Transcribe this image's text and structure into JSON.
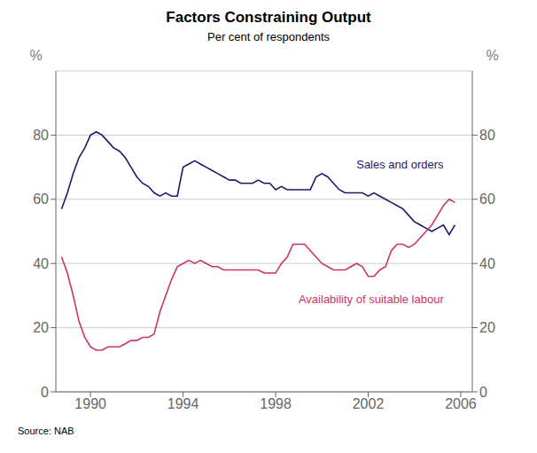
{
  "chart_data": {
    "type": "line",
    "title": "Factors Constraining Output",
    "subtitle": "Per cent of respondents",
    "source": "Source: NAB",
    "ylabel": "%",
    "y2label": "%",
    "grid": true,
    "xlim": [
      1988.5,
      2006.5
    ],
    "xticks": [
      1990,
      1994,
      1998,
      2002,
      2006
    ],
    "ylim": [
      0,
      100
    ],
    "yticks": [
      0,
      20,
      40,
      60,
      80
    ],
    "y2lim": [
      0,
      100
    ],
    "y2ticks": [
      0,
      20,
      40,
      60,
      80
    ],
    "x": [
      1988.75,
      1989.0,
      1989.25,
      1989.5,
      1989.75,
      1990.0,
      1990.25,
      1990.5,
      1990.75,
      1991.0,
      1991.25,
      1991.5,
      1991.75,
      1992.0,
      1992.25,
      1992.5,
      1992.75,
      1993.0,
      1993.25,
      1993.5,
      1993.75,
      1994.0,
      1994.25,
      1994.5,
      1994.75,
      1995.0,
      1995.25,
      1995.5,
      1995.75,
      1996.0,
      1996.25,
      1996.5,
      1996.75,
      1997.0,
      1997.25,
      1997.5,
      1997.75,
      1998.0,
      1998.25,
      1998.5,
      1998.75,
      1999.0,
      1999.25,
      1999.5,
      1999.75,
      2000.0,
      2000.25,
      2000.5,
      2000.75,
      2001.0,
      2001.25,
      2001.5,
      2001.75,
      2002.0,
      2002.25,
      2002.5,
      2002.75,
      2003.0,
      2003.25,
      2003.5,
      2003.75,
      2004.0,
      2004.25,
      2004.5,
      2004.75,
      2005.0,
      2005.25,
      2005.5,
      2005.75
    ],
    "series": [
      {
        "color": "#1a1a6e",
        "values": [
          57,
          62,
          68,
          73,
          76,
          80,
          81,
          80,
          78,
          76,
          75,
          73,
          70,
          67,
          65,
          64,
          62,
          61,
          62,
          61,
          61,
          70,
          71,
          72,
          71,
          70,
          69,
          68,
          67,
          66,
          66,
          65,
          65,
          65,
          66,
          65,
          65,
          63,
          64,
          63,
          63,
          63,
          63,
          63,
          67,
          68,
          67,
          65,
          63,
          62,
          62,
          62,
          62,
          61,
          62,
          61,
          60,
          59,
          58,
          57,
          55,
          53,
          52,
          51,
          50,
          51,
          52,
          49,
          52
        ]
      },
      {
        "color": "#cc3366",
        "values": [
          42,
          37,
          30,
          22,
          17,
          14,
          13,
          13,
          14,
          14,
          14,
          15,
          16,
          16,
          17,
          17,
          18,
          25,
          30,
          35,
          39,
          40,
          41,
          40,
          41,
          40,
          39,
          39,
          38,
          38,
          38,
          38,
          38,
          38,
          38,
          37,
          37,
          37,
          40,
          42,
          46,
          46,
          46,
          44,
          42,
          40,
          39,
          38,
          38,
          38,
          39,
          40,
          39,
          36,
          36,
          38,
          39,
          44,
          46,
          46,
          45,
          46,
          48,
          50,
          52,
          55,
          58,
          60,
          59
        ]
      }
    ],
    "annotations": [
      {
        "text": "Sales and orders",
        "x": 2001.3,
        "y": 71,
        "color": "#1a1a6e"
      },
      {
        "text": "Availability of suitable labour",
        "x": 1998.8,
        "y": 29,
        "color": "#cc3366"
      }
    ]
  }
}
